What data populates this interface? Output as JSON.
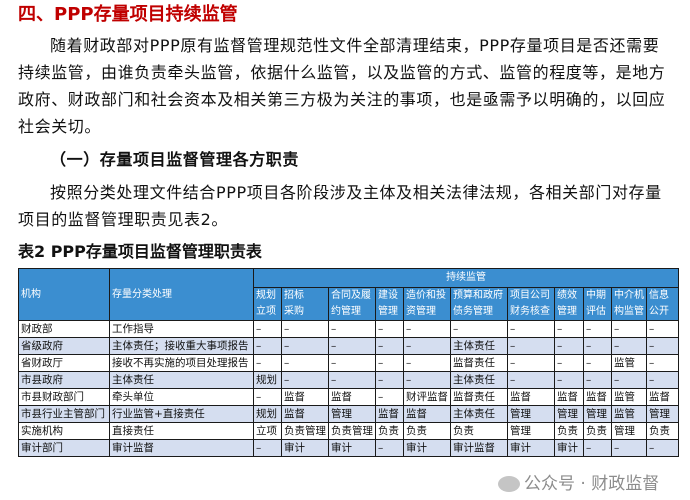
{
  "heading": "四、PPP存量项目持续监管",
  "paragraph1": [
    "随着财政部对PPP原有监督管理规范性文件全部清理结束，PPP存量项目是否还需要",
    "持续监管，由谁负责牵头监管，依据什么监管，以及监管的方式、监管的程度等，是地方",
    "政府、财政部门和社会资本及相关第三方极为关注的事项，也是亟需予以明确的，以回应",
    "社会关切。"
  ],
  "subheading": "（一）存量项目监督管理各方职责",
  "paragraph2": [
    "按照分类处理文件结合PPP项目各阶段涉及主体及相关法律法规，各相关部门对存量",
    "项目的监督管理职责见表2。"
  ],
  "table_caption": "表2  PPP存量项目监督管理职责表",
  "table": {
    "col_org": "机构",
    "col_class": "存量分类处理",
    "group": "持续监管",
    "sub_cols": [
      [
        "规划",
        "立项"
      ],
      [
        "招标",
        "采购"
      ],
      [
        "合同及履",
        "约管理"
      ],
      [
        "建设",
        "管理"
      ],
      [
        "造价和投",
        "资管理"
      ],
      [
        "预算和政府",
        "债务管理"
      ],
      [
        "项目公司",
        "财务核查"
      ],
      [
        "绩效",
        "管理"
      ],
      [
        "中期",
        "评估"
      ],
      [
        "中介机",
        "构监管"
      ],
      [
        "信息",
        "公开"
      ]
    ],
    "rows": [
      [
        "财政部",
        "工作指导",
        "–",
        "–",
        "–",
        "–",
        "–",
        "–",
        "–",
        "–",
        "–",
        "–",
        "–"
      ],
      [
        "省级政府",
        "主体责任；接收重大事项报告",
        "–",
        "–",
        "–",
        "–",
        "–",
        "主体责任",
        "–",
        "–",
        "–",
        "–",
        "–"
      ],
      [
        "省财政厅",
        "接收不再实施的项目处理报告",
        "–",
        "–",
        "–",
        "–",
        "–",
        "监督责任",
        "–",
        "–",
        "–",
        "监管",
        "–"
      ],
      [
        "市县政府",
        "主体责任",
        "规划",
        "–",
        "–",
        "–",
        "–",
        "主体责任",
        "–",
        "–",
        "–",
        "–",
        "–"
      ],
      [
        "市县财政部门",
        "牵头单位",
        "–",
        "监督",
        "监督",
        "–",
        "财评监督",
        "监督责任",
        "监督",
        "监督",
        "监督",
        "监管",
        "监督"
      ],
      [
        "市县行业主管部门",
        "行业监管+直接责任",
        "规划",
        "监督",
        "管理",
        "监督",
        "监督",
        "主体责任",
        "管理",
        "管理",
        "管理",
        "监管",
        "管理"
      ],
      [
        "实施机构",
        "直接责任",
        "立项",
        "负责管理",
        "负责管理",
        "负责",
        "负责",
        "负责",
        "管理",
        "负责",
        "负责",
        "管理",
        "负责"
      ],
      [
        "审计部门",
        "审计监督",
        "–",
        "审计",
        "审计",
        "–",
        "审计",
        "审计监督",
        "审计",
        "审计",
        "–",
        "–",
        "–"
      ]
    ]
  },
  "watermark": "公众号 · 财政监督",
  "colors": {
    "heading": "#c00000",
    "table_header": "#3b8ed0",
    "alt_row": "#d5def0"
  }
}
